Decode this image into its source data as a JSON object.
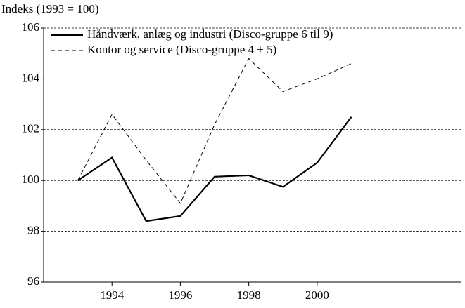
{
  "chart_data": {
    "type": "line",
    "y_label": "Indeks (1993 = 100)",
    "x": [
      1993,
      1994,
      1995,
      1996,
      1997,
      1998,
      1999,
      2000,
      2001
    ],
    "series": [
      {
        "name": "Håndværk, anlæg og industri (Disco-gruppe 6 til 9)",
        "color": "#000000",
        "dash": "solid",
        "values": [
          100,
          100.9,
          98.4,
          98.6,
          100.15,
          100.2,
          99.75,
          100.7,
          102.5
        ]
      },
      {
        "name": "Kontor og service (Disco-gruppe 4 + 5)",
        "color": "#000000",
        "dash": "dashed",
        "values": [
          100,
          102.6,
          100.8,
          99.1,
          102.2,
          104.8,
          103.5,
          104.0,
          104.6
        ]
      }
    ],
    "xlim": [
      1992,
      2004.2
    ],
    "xticks": [
      1994,
      1996,
      1998,
      2000
    ],
    "ylim": [
      96,
      106
    ],
    "yticks": [
      96,
      98,
      100,
      102,
      104,
      106
    ],
    "grid": true,
    "legend": "top-left"
  }
}
